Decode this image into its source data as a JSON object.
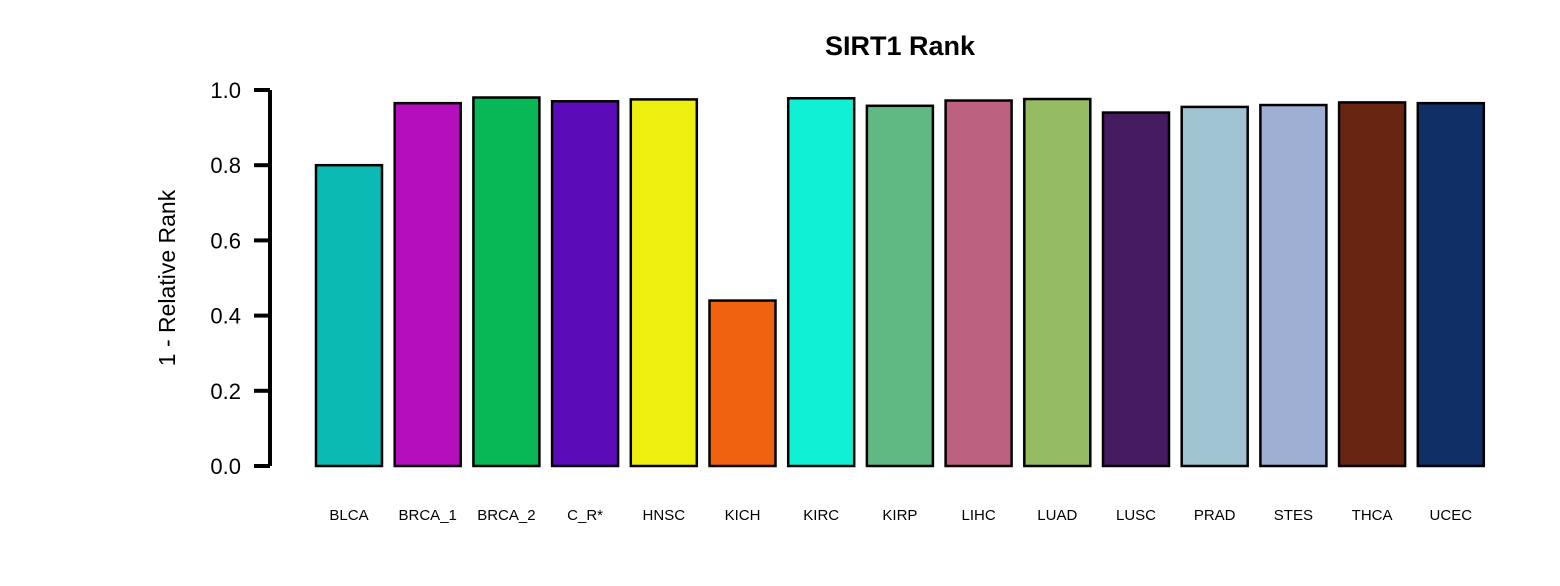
{
  "chart_data": {
    "type": "bar",
    "title": "SIRT1 Rank",
    "xlabel": "",
    "ylabel": "1 - Relative Rank",
    "ylim": [
      0,
      1.0
    ],
    "yticks": [
      "0.0",
      "0.2",
      "0.4",
      "0.6",
      "0.8",
      "1.0"
    ],
    "grid": false,
    "legend": "none",
    "categories": [
      "BLCA",
      "BRCA_1",
      "BRCA_2",
      "C_R*",
      "HNSC",
      "KICH",
      "KIRC",
      "KIRP",
      "LIHC",
      "LUAD",
      "LUSC",
      "PRAD",
      "STES",
      "THCA",
      "UCEC"
    ],
    "values": [
      0.8,
      0.965,
      0.98,
      0.97,
      0.975,
      0.44,
      0.978,
      0.958,
      0.972,
      0.976,
      0.94,
      0.955,
      0.96,
      0.967,
      0.965
    ],
    "colors": [
      "#0bbab3",
      "#b50fbd",
      "#08b857",
      "#5c0bb8",
      "#edf00f",
      "#f06110",
      "#0ff0d4",
      "#60b982",
      "#bd6180",
      "#95bc62",
      "#461b5f",
      "#a1c4d3",
      "#9faed3",
      "#682612",
      "#0f2f66"
    ]
  }
}
